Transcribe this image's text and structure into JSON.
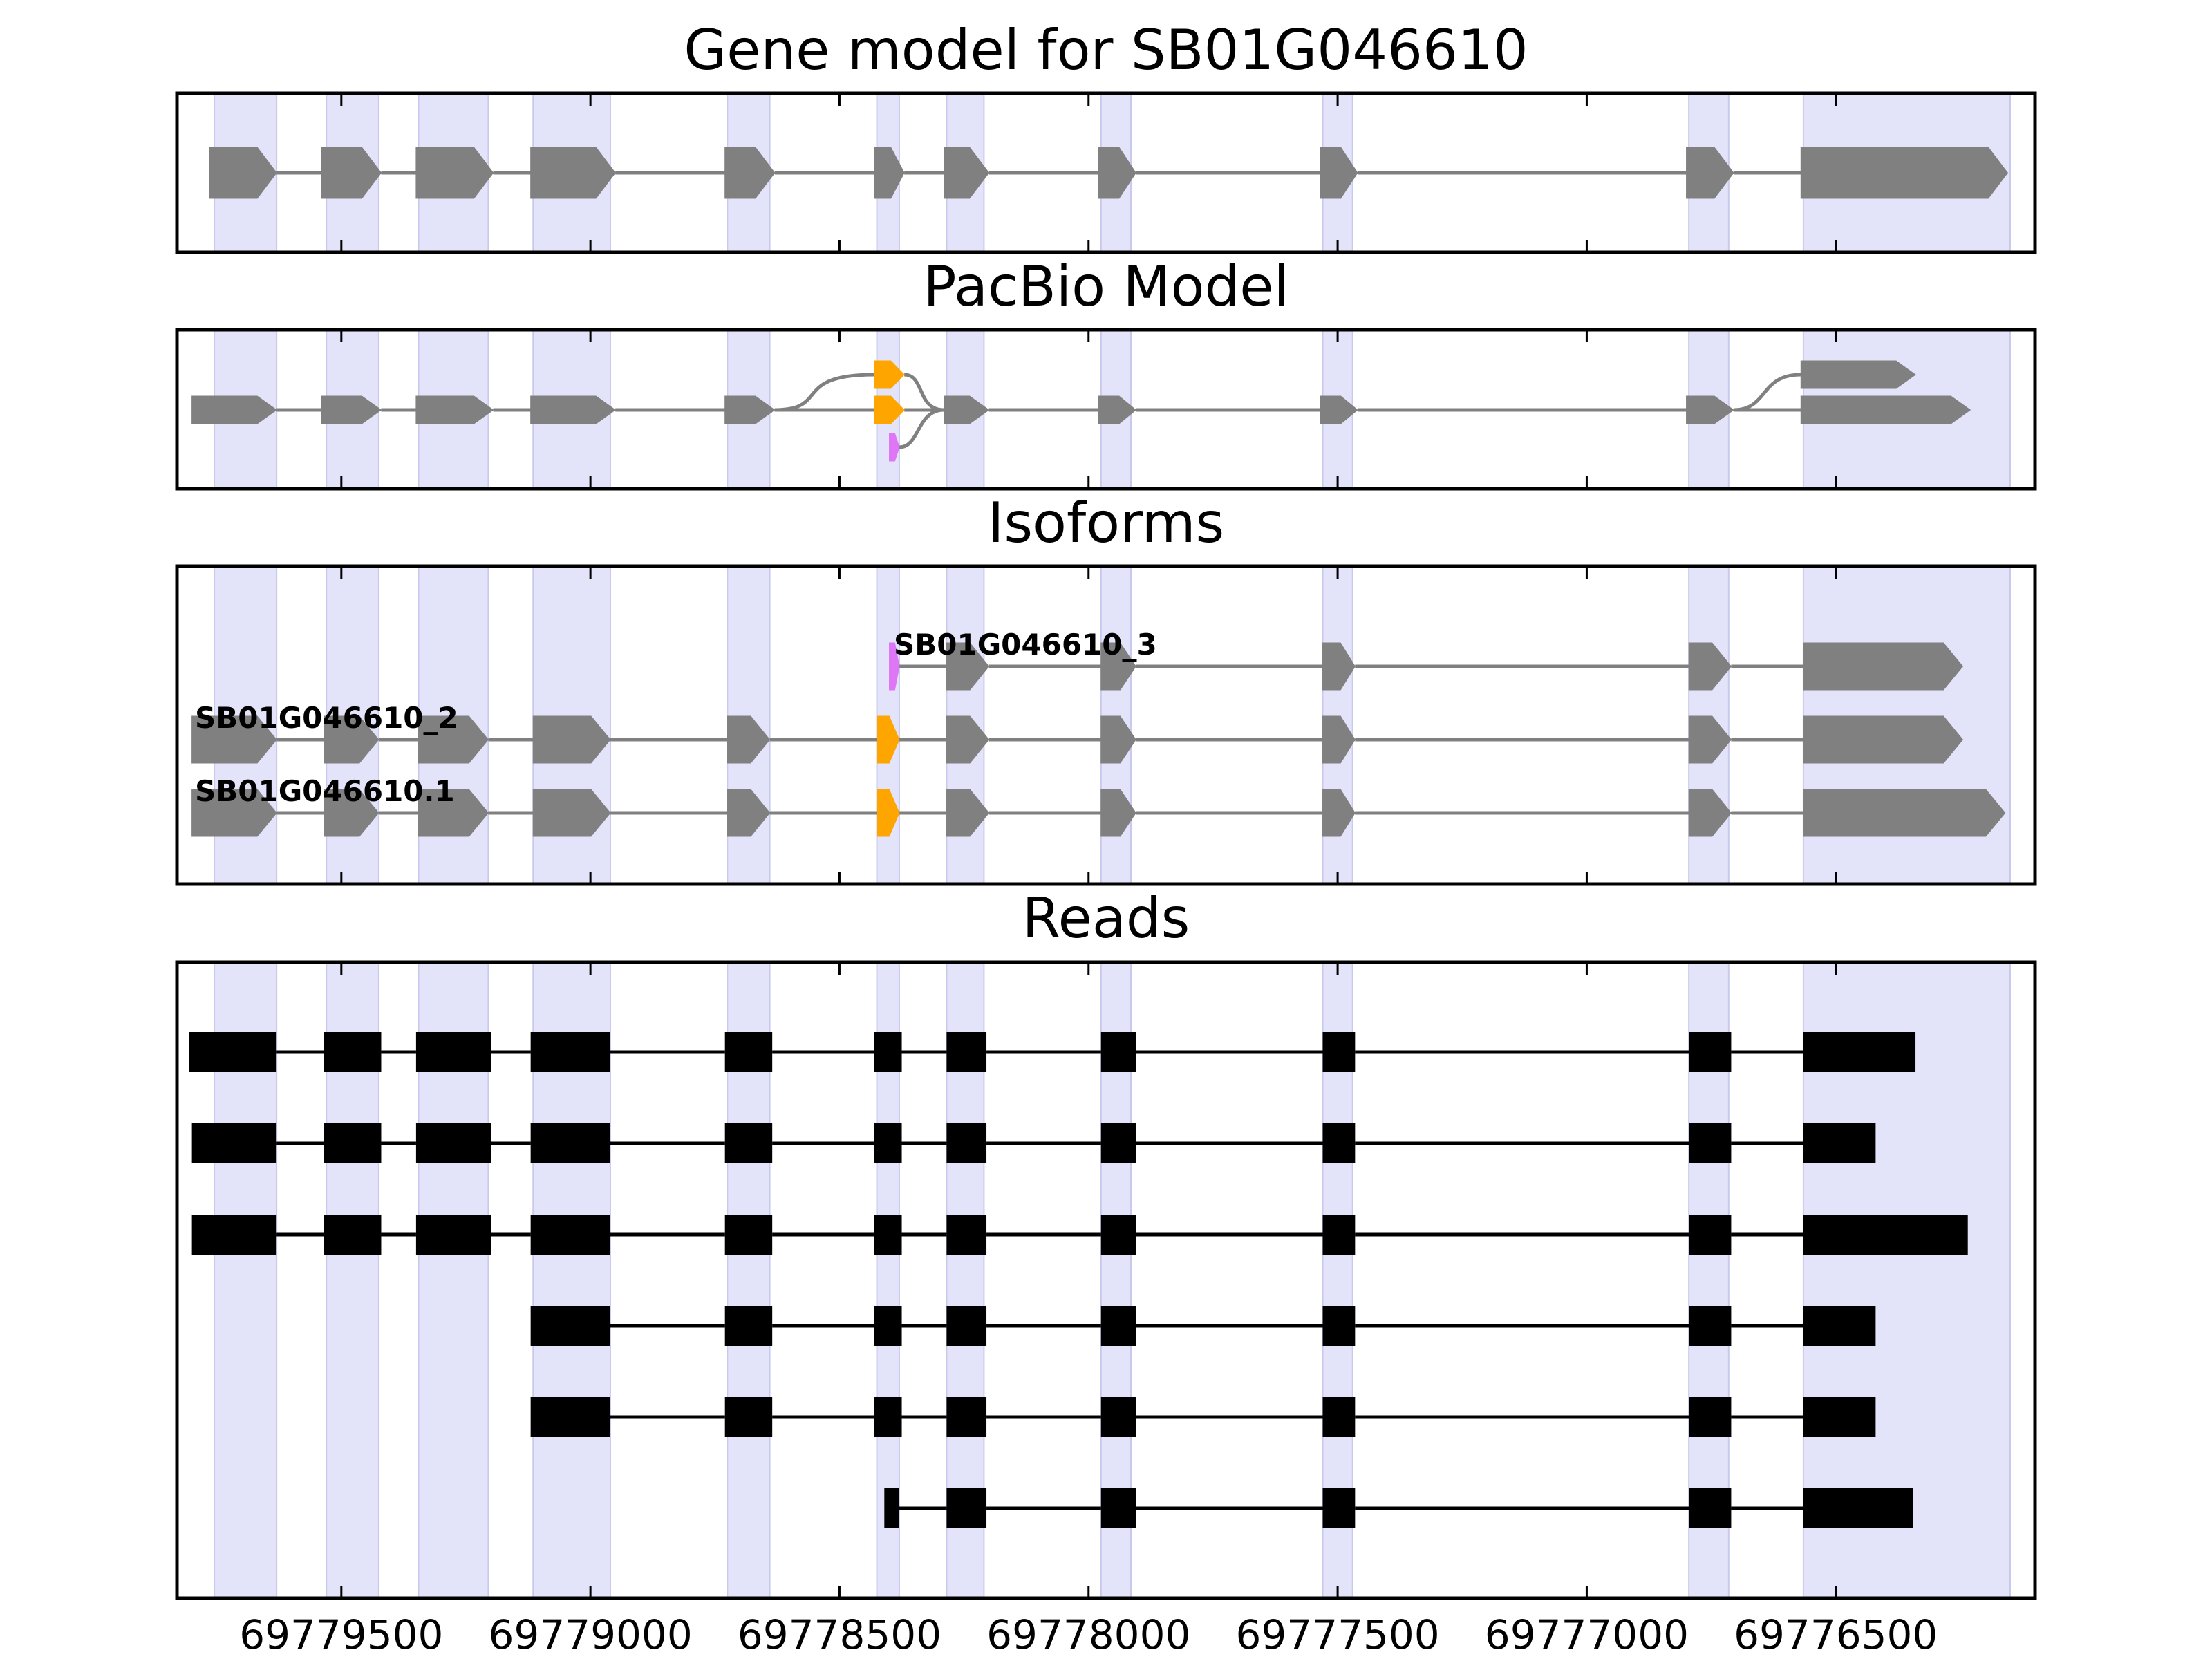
{
  "figure": {
    "panels": [
      {
        "key": "gene_model",
        "title": "Gene model for SB01G046610"
      },
      {
        "key": "pacbio",
        "title": "PacBio Model"
      },
      {
        "key": "isoforms",
        "title": "Isoforms"
      },
      {
        "key": "reads",
        "title": "Reads"
      }
    ],
    "x_axis": {
      "orientation": "reversed (genomic coordinate decreases left to right)",
      "range": [
        69779830,
        69776100
      ],
      "tick_values": [
        69779500,
        69779000,
        69778500,
        69778000,
        69777500,
        69777000,
        69776500
      ],
      "tick_labels": [
        "69779500",
        "69779000",
        "69778500",
        "69778000",
        "69777500",
        "69777000",
        "69776500"
      ]
    },
    "colors": {
      "highlight": "#e3e3fa",
      "exon": "#808080",
      "intron": "#808080",
      "alt_exon_orange": "#ffa500",
      "alt_exon_purple": "#dd77f5",
      "read": "#000000"
    },
    "highlight_regions": [
      [
        69779755,
        69779630
      ],
      [
        69779530,
        69779425
      ],
      [
        69779345,
        69779205
      ],
      [
        69779115,
        69778960
      ],
      [
        69778725,
        69778640
      ],
      [
        69778425,
        69778380
      ],
      [
        69778285,
        69778210
      ],
      [
        69777975,
        69777915
      ],
      [
        69777530,
        69777470
      ],
      [
        69776795,
        69776715
      ],
      [
        69776565,
        69776150
      ]
    ],
    "gene_model": {
      "strand": "-",
      "exons": [
        [
          69779765,
          69779630
        ],
        [
          69779540,
          69779420
        ],
        [
          69779350,
          69779195
        ],
        [
          69779120,
          69778950
        ],
        [
          69778730,
          69778630
        ],
        [
          69778430,
          69778370
        ],
        [
          69778290,
          69778200
        ],
        [
          69777980,
          69777905
        ],
        [
          69777535,
          69777460
        ],
        [
          69776800,
          69776705
        ],
        [
          69776570,
          69776155
        ]
      ]
    },
    "pacbio": {
      "base_exons": [
        [
          69779800,
          69779630
        ],
        [
          69779540,
          69779420
        ],
        [
          69779350,
          69779195
        ],
        [
          69779120,
          69778950
        ],
        [
          69778730,
          69778630
        ],
        [
          69778290,
          69778200
        ],
        [
          69777980,
          69777905
        ],
        [
          69777535,
          69777460
        ],
        [
          69776800,
          69776705
        ]
      ],
      "alt_top_exon": {
        "range": [
          69778430,
          69778370
        ],
        "color": "orange"
      },
      "alt_mid_exon": {
        "range": [
          69778430,
          69778370
        ],
        "color": "orange"
      },
      "alt_purple_exon": {
        "range": [
          69778400,
          69778380
        ],
        "color": "purple"
      },
      "final_upper": [
        69776570,
        69776340
      ],
      "final_lower": [
        69776570,
        69776230
      ]
    },
    "isoforms": [
      {
        "name": "SB01G046610_3",
        "exons": [
          {
            "range": [
              69778400,
              69778380
            ],
            "color": "purple"
          },
          {
            "range": [
              69778285,
              69778200
            ],
            "color": "gray"
          },
          {
            "range": [
              69777975,
              69777905
            ],
            "color": "gray"
          },
          {
            "range": [
              69777530,
              69777465
            ],
            "color": "gray"
          },
          {
            "range": [
              69776795,
              69776710
            ],
            "color": "gray"
          },
          {
            "range": [
              69776565,
              69776245
            ],
            "color": "gray"
          }
        ]
      },
      {
        "name": "SB01G046610_2",
        "exons": [
          {
            "range": [
              69779800,
              69779630
            ],
            "color": "gray"
          },
          {
            "range": [
              69779535,
              69779425
            ],
            "color": "gray"
          },
          {
            "range": [
              69779345,
              69779205
            ],
            "color": "gray"
          },
          {
            "range": [
              69779115,
              69778960
            ],
            "color": "gray"
          },
          {
            "range": [
              69778725,
              69778640
            ],
            "color": "gray"
          },
          {
            "range": [
              69778425,
              69778380
            ],
            "color": "orange"
          },
          {
            "range": [
              69778285,
              69778200
            ],
            "color": "gray"
          },
          {
            "range": [
              69777975,
              69777905
            ],
            "color": "gray"
          },
          {
            "range": [
              69777530,
              69777465
            ],
            "color": "gray"
          },
          {
            "range": [
              69776795,
              69776710
            ],
            "color": "gray"
          },
          {
            "range": [
              69776565,
              69776245
            ],
            "color": "gray"
          }
        ]
      },
      {
        "name": "SB01G046610.1",
        "exons": [
          {
            "range": [
              69779800,
              69779630
            ],
            "color": "gray"
          },
          {
            "range": [
              69779535,
              69779425
            ],
            "color": "gray"
          },
          {
            "range": [
              69779345,
              69779205
            ],
            "color": "gray"
          },
          {
            "range": [
              69779115,
              69778960
            ],
            "color": "gray"
          },
          {
            "range": [
              69778725,
              69778640
            ],
            "color": "gray"
          },
          {
            "range": [
              69778425,
              69778380
            ],
            "color": "orange"
          },
          {
            "range": [
              69778285,
              69778200
            ],
            "color": "gray"
          },
          {
            "range": [
              69777975,
              69777905
            ],
            "color": "gray"
          },
          {
            "range": [
              69777530,
              69777465
            ],
            "color": "gray"
          },
          {
            "range": [
              69776795,
              69776710
            ],
            "color": "gray"
          },
          {
            "range": [
              69776565,
              69776160
            ],
            "color": "gray"
          }
        ]
      }
    ],
    "reads": [
      [
        [
          69779805,
          69779630
        ],
        [
          69779535,
          69779420
        ],
        [
          69779350,
          69779200
        ],
        [
          69779120,
          69778960
        ],
        [
          69778730,
          69778635
        ],
        [
          69778430,
          69778375
        ],
        [
          69778285,
          69778205
        ],
        [
          69777975,
          69777905
        ],
        [
          69777530,
          69777465
        ],
        [
          69776795,
          69776710
        ],
        [
          69776565,
          69776340
        ]
      ],
      [
        [
          69779800,
          69779630
        ],
        [
          69779535,
          69779420
        ],
        [
          69779350,
          69779200
        ],
        [
          69779120,
          69778960
        ],
        [
          69778730,
          69778635
        ],
        [
          69778430,
          69778375
        ],
        [
          69778285,
          69778205
        ],
        [
          69777975,
          69777905
        ],
        [
          69777530,
          69777465
        ],
        [
          69776795,
          69776710
        ],
        [
          69776565,
          69776420
        ]
      ],
      [
        [
          69779800,
          69779630
        ],
        [
          69779535,
          69779420
        ],
        [
          69779350,
          69779200
        ],
        [
          69779120,
          69778960
        ],
        [
          69778730,
          69778635
        ],
        [
          69778430,
          69778375
        ],
        [
          69778285,
          69778205
        ],
        [
          69777975,
          69777905
        ],
        [
          69777530,
          69777465
        ],
        [
          69776795,
          69776710
        ],
        [
          69776565,
          69776235
        ]
      ],
      [
        [
          69779120,
          69778960
        ],
        [
          69778730,
          69778635
        ],
        [
          69778430,
          69778375
        ],
        [
          69778285,
          69778205
        ],
        [
          69777975,
          69777905
        ],
        [
          69777530,
          69777465
        ],
        [
          69776795,
          69776710
        ],
        [
          69776565,
          69776420
        ]
      ],
      [
        [
          69779120,
          69778960
        ],
        [
          69778730,
          69778635
        ],
        [
          69778430,
          69778375
        ],
        [
          69778285,
          69778205
        ],
        [
          69777975,
          69777905
        ],
        [
          69777530,
          69777465
        ],
        [
          69776795,
          69776710
        ],
        [
          69776565,
          69776420
        ]
      ],
      [
        [
          69778410,
          69778380
        ],
        [
          69778285,
          69778205
        ],
        [
          69777975,
          69777905
        ],
        [
          69777530,
          69777465
        ],
        [
          69776795,
          69776710
        ],
        [
          69776565,
          69776345
        ]
      ]
    ]
  }
}
